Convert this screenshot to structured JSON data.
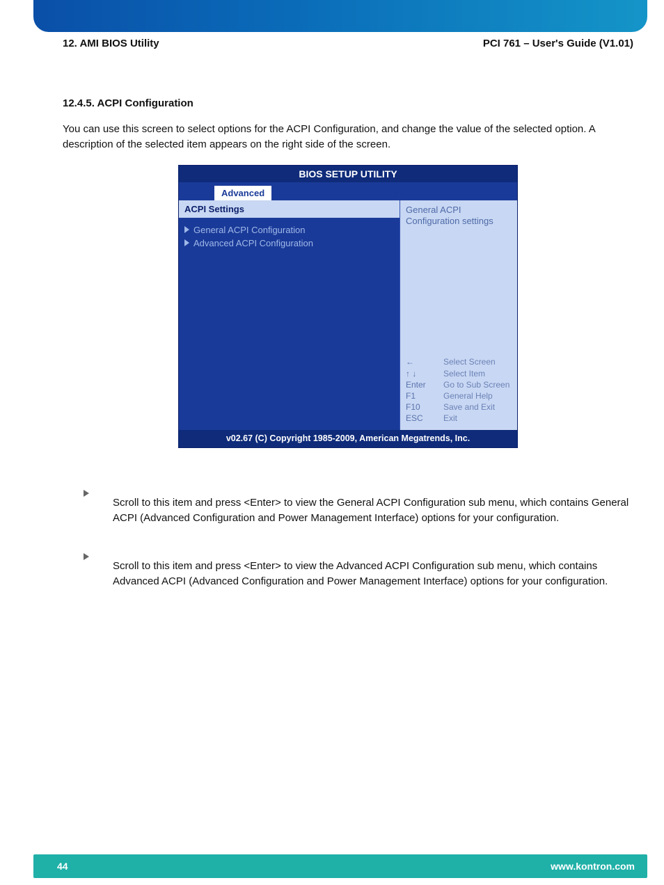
{
  "header": {
    "left": "12. AMI BIOS Utility",
    "right": "PCI 761 – User's Guide (V1.01)"
  },
  "section": {
    "title": "12.4.5. ACPI Configuration",
    "intro": "You can use this screen to select options for the ACPI Configuration, and change the value of the selected option. A description of the selected item appears on the right side of the screen."
  },
  "bios": {
    "title": "BIOS SETUP UTILITY",
    "tab": "Advanced",
    "left_header": "ACPI  Settings",
    "menu_items": [
      "General ACPI Configuration",
      "Advanced ACPI Configuration"
    ],
    "help_text": "General ACPI Configuration settings",
    "nav": [
      {
        "key": "←",
        "label": "Select Screen"
      },
      {
        "key": "↑ ↓",
        "label": "Select Item"
      },
      {
        "key": "Enter",
        "label": "Go to Sub Screen"
      },
      {
        "key": "F1",
        "label": "General Help"
      },
      {
        "key": "F10",
        "label": "Save and Exit"
      },
      {
        "key": "ESC",
        "label": "Exit"
      }
    ],
    "footer": "v02.67 (C) Copyright 1985-2009, American Megatrends, Inc.",
    "colors": {
      "header_bg": "#0f2b7a",
      "body_bg": "#1a3a99",
      "panel_bg": "#c8d7f3",
      "menu_text": "#9fb8e8",
      "help_text": "#4e6aa7"
    }
  },
  "bullets": [
    "Scroll to this item and press <Enter> to view the General ACPI Configuration sub menu, which contains General ACPI (Advanced Configuration and Power Management Interface) options for your configuration.",
    "Scroll to this item and press <Enter> to view the Advanced ACPI Configuration sub menu, which contains Advanced ACPI (Advanced Configuration and Power Management Interface) options for your configuration."
  ],
  "footer": {
    "page": "44",
    "url": "www.kontron.com",
    "bg": "#1fb0a8"
  }
}
